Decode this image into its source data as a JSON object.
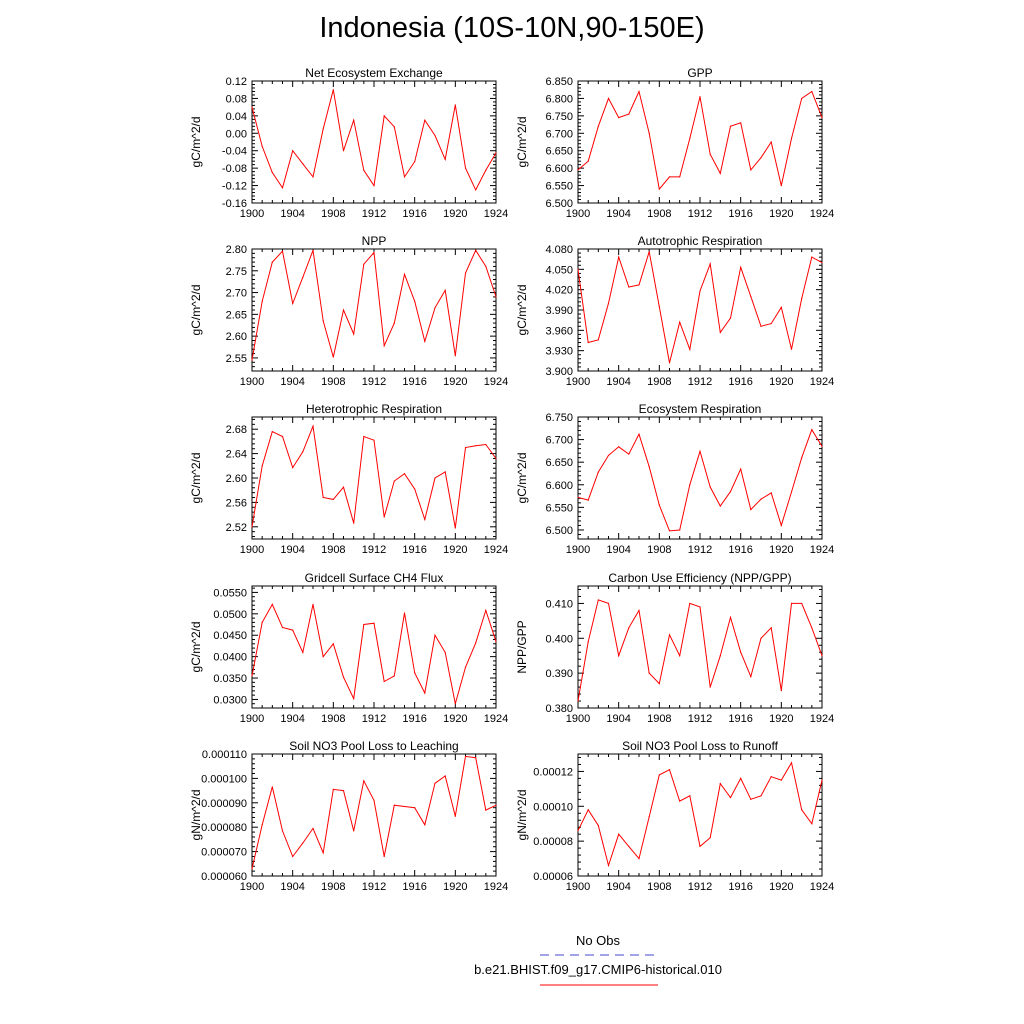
{
  "title": "Indonesia (10S-10N,90-150E)",
  "colors": {
    "line": "#ff0000",
    "obs": "#4444cc",
    "axis": "#000000"
  },
  "legend": {
    "obs_label": "No Obs",
    "model_label": "b.e21.BHIST.f09_g17.CMIP6-historical.010"
  },
  "chart_data": [
    {
      "type": "line",
      "title": "Net Ecosystem Exchange",
      "ylabel": "gC/m^2/d",
      "xlim": [
        1900,
        1924
      ],
      "ylim": [
        -0.16,
        0.12
      ],
      "yticks": [
        -0.16,
        -0.12,
        -0.08,
        -0.04,
        0.0,
        0.04,
        0.08,
        0.12
      ],
      "ytick_labels": [
        "-0.16",
        "-0.12",
        "-0.08",
        "-0.04",
        "0.00",
        "0.04",
        "0.08",
        "0.12"
      ],
      "xticks": [
        1900,
        1904,
        1908,
        1912,
        1916,
        1920,
        1924
      ],
      "xtick_labels": [
        "1900",
        "1904",
        "1908",
        "1912",
        "1916",
        "1920",
        "1924"
      ],
      "x": [
        1900,
        1901,
        1902,
        1903,
        1904,
        1905,
        1906,
        1907,
        1908,
        1909,
        1910,
        1911,
        1912,
        1913,
        1914,
        1915,
        1916,
        1917,
        1918,
        1919,
        1920,
        1921,
        1922,
        1923,
        1924
      ],
      "y": [
        0.06,
        -0.03,
        -0.09,
        -0.125,
        -0.04,
        -0.07,
        -0.1,
        0.01,
        0.1,
        -0.04,
        0.03,
        -0.085,
        -0.12,
        0.04,
        0.015,
        -0.1,
        -0.065,
        0.03,
        -0.005,
        -0.06,
        0.065,
        -0.08,
        -0.13,
        -0.085,
        -0.045
      ]
    },
    {
      "type": "line",
      "title": "GPP",
      "ylabel": "gC/m^2/d",
      "xlim": [
        1900,
        1924
      ],
      "ylim": [
        6.5,
        6.85
      ],
      "yticks": [
        6.5,
        6.55,
        6.6,
        6.65,
        6.7,
        6.75,
        6.8,
        6.85
      ],
      "ytick_labels": [
        "6.500",
        "6.550",
        "6.600",
        "6.650",
        "6.700",
        "6.750",
        "6.800",
        "6.850"
      ],
      "xticks": [
        1900,
        1904,
        1908,
        1912,
        1916,
        1920,
        1924
      ],
      "xtick_labels": [
        "1900",
        "1904",
        "1908",
        "1912",
        "1916",
        "1920",
        "1924"
      ],
      "x": [
        1900,
        1901,
        1902,
        1903,
        1904,
        1905,
        1906,
        1907,
        1908,
        1909,
        1910,
        1911,
        1912,
        1913,
        1914,
        1915,
        1916,
        1917,
        1918,
        1919,
        1920,
        1921,
        1922,
        1923,
        1924
      ],
      "y": [
        6.595,
        6.62,
        6.72,
        6.8,
        6.745,
        6.755,
        6.82,
        6.7,
        6.54,
        6.575,
        6.575,
        6.685,
        6.805,
        6.64,
        6.585,
        6.72,
        6.73,
        6.595,
        6.63,
        6.675,
        6.55,
        6.685,
        6.8,
        6.82,
        6.745
      ]
    },
    {
      "type": "line",
      "title": "NPP",
      "ylabel": "gC/m^2/d",
      "xlim": [
        1900,
        1924
      ],
      "ylim": [
        2.52,
        2.8
      ],
      "yticks": [
        2.55,
        2.6,
        2.65,
        2.7,
        2.75,
        2.8
      ],
      "ytick_labels": [
        "2.55",
        "2.60",
        "2.65",
        "2.70",
        "2.75",
        "2.80"
      ],
      "xticks": [
        1900,
        1904,
        1908,
        1912,
        1916,
        1920,
        1924
      ],
      "xtick_labels": [
        "1900",
        "1904",
        "1908",
        "1912",
        "1916",
        "1920",
        "1924"
      ],
      "x": [
        1900,
        1901,
        1902,
        1903,
        1904,
        1905,
        1906,
        1907,
        1908,
        1909,
        1910,
        1911,
        1912,
        1913,
        1914,
        1915,
        1916,
        1917,
        1918,
        1919,
        1920,
        1921,
        1922,
        1923,
        1924
      ],
      "y": [
        2.545,
        2.68,
        2.77,
        2.795,
        2.675,
        2.735,
        2.797,
        2.635,
        2.552,
        2.66,
        2.605,
        2.765,
        2.792,
        2.578,
        2.63,
        2.742,
        2.68,
        2.588,
        2.665,
        2.705,
        2.555,
        2.745,
        2.797,
        2.76,
        2.69
      ]
    },
    {
      "type": "line",
      "title": "Autotrophic Respiration",
      "ylabel": "gC/m^2/d",
      "xlim": [
        1900,
        1924
      ],
      "ylim": [
        3.9,
        4.08
      ],
      "yticks": [
        3.9,
        3.93,
        3.96,
        3.99,
        4.02,
        4.05,
        4.08
      ],
      "ytick_labels": [
        "3.900",
        "3.930",
        "3.960",
        "3.990",
        "4.020",
        "4.050",
        "4.080"
      ],
      "xticks": [
        1900,
        1904,
        1908,
        1912,
        1916,
        1920,
        1924
      ],
      "xtick_labels": [
        "1900",
        "1904",
        "1908",
        "1912",
        "1916",
        "1920",
        "1924"
      ],
      "x": [
        1900,
        1901,
        1902,
        1903,
        1904,
        1905,
        1906,
        1907,
        1908,
        1909,
        1910,
        1911,
        1912,
        1913,
        1914,
        1915,
        1916,
        1917,
        1918,
        1919,
        1920,
        1921,
        1922,
        1923,
        1924
      ],
      "y": [
        4.05,
        3.942,
        3.946,
        4.0,
        4.068,
        4.024,
        4.027,
        4.076,
        3.995,
        3.912,
        3.972,
        3.932,
        4.018,
        4.058,
        3.957,
        3.978,
        4.053,
        4.01,
        3.966,
        3.97,
        3.994,
        3.932,
        4.007,
        4.068,
        4.06
      ]
    },
    {
      "type": "line",
      "title": "Heterotrophic Respiration",
      "ylabel": "gC/m^2/d",
      "xlim": [
        1900,
        1924
      ],
      "ylim": [
        2.5,
        2.7
      ],
      "yticks": [
        2.52,
        2.56,
        2.6,
        2.64,
        2.68
      ],
      "ytick_labels": [
        "2.52",
        "2.56",
        "2.60",
        "2.64",
        "2.68"
      ],
      "xticks": [
        1900,
        1904,
        1908,
        1912,
        1916,
        1920,
        1924
      ],
      "xtick_labels": [
        "1900",
        "1904",
        "1908",
        "1912",
        "1916",
        "1920",
        "1924"
      ],
      "x": [
        1900,
        1901,
        1902,
        1903,
        1904,
        1905,
        1906,
        1907,
        1908,
        1909,
        1910,
        1911,
        1912,
        1913,
        1914,
        1915,
        1916,
        1917,
        1918,
        1919,
        1920,
        1921,
        1922,
        1923,
        1924
      ],
      "y": [
        2.52,
        2.62,
        2.676,
        2.668,
        2.617,
        2.643,
        2.685,
        2.568,
        2.565,
        2.585,
        2.526,
        2.668,
        2.662,
        2.536,
        2.595,
        2.607,
        2.582,
        2.532,
        2.6,
        2.61,
        2.518,
        2.65,
        2.653,
        2.655,
        2.632
      ]
    },
    {
      "type": "line",
      "title": "Ecosystem Respiration",
      "ylabel": "gC/m^2/d",
      "xlim": [
        1900,
        1924
      ],
      "ylim": [
        6.48,
        6.75
      ],
      "yticks": [
        6.5,
        6.55,
        6.6,
        6.65,
        6.7,
        6.75
      ],
      "ytick_labels": [
        "6.500",
        "6.550",
        "6.600",
        "6.650",
        "6.700",
        "6.750"
      ],
      "xticks": [
        1900,
        1904,
        1908,
        1912,
        1916,
        1920,
        1924
      ],
      "xtick_labels": [
        "1900",
        "1904",
        "1908",
        "1912",
        "1916",
        "1920",
        "1924"
      ],
      "x": [
        1900,
        1901,
        1902,
        1903,
        1904,
        1905,
        1906,
        1907,
        1908,
        1909,
        1910,
        1911,
        1912,
        1913,
        1914,
        1915,
        1916,
        1917,
        1918,
        1919,
        1920,
        1921,
        1922,
        1923,
        1924
      ],
      "y": [
        6.572,
        6.566,
        6.628,
        6.665,
        6.684,
        6.668,
        6.712,
        6.64,
        6.555,
        6.498,
        6.5,
        6.6,
        6.674,
        6.595,
        6.553,
        6.585,
        6.635,
        6.545,
        6.568,
        6.582,
        6.51,
        6.584,
        6.66,
        6.722,
        6.685
      ]
    },
    {
      "type": "line",
      "title": "Gridcell Surface CH4 Flux",
      "ylabel": "gC/m^2/d",
      "xlim": [
        1900,
        1924
      ],
      "ylim": [
        0.028,
        0.0565
      ],
      "yticks": [
        0.03,
        0.035,
        0.04,
        0.045,
        0.05,
        0.055
      ],
      "ytick_labels": [
        "0.0300",
        "0.0350",
        "0.0400",
        "0.0450",
        "0.0500",
        "0.0550"
      ],
      "xticks": [
        1900,
        1904,
        1908,
        1912,
        1916,
        1920,
        1924
      ],
      "xtick_labels": [
        "1900",
        "1904",
        "1908",
        "1912",
        "1916",
        "1920",
        "1924"
      ],
      "x": [
        1900,
        1901,
        1902,
        1903,
        1904,
        1905,
        1906,
        1907,
        1908,
        1909,
        1910,
        1911,
        1912,
        1913,
        1914,
        1915,
        1916,
        1917,
        1918,
        1919,
        1920,
        1921,
        1922,
        1923,
        1924
      ],
      "y": [
        0.0355,
        0.048,
        0.0522,
        0.0468,
        0.0462,
        0.041,
        0.0522,
        0.04,
        0.043,
        0.0352,
        0.0302,
        0.0475,
        0.0478,
        0.0342,
        0.0355,
        0.0502,
        0.0362,
        0.0315,
        0.045,
        0.041,
        0.029,
        0.0375,
        0.0432,
        0.0508,
        0.0435
      ]
    },
    {
      "type": "line",
      "title": "Carbon Use Efficiency (NPP/GPP)",
      "ylabel": "NPP/GPP",
      "xlim": [
        1900,
        1924
      ],
      "ylim": [
        0.38,
        0.415
      ],
      "yticks": [
        0.38,
        0.39,
        0.4,
        0.41
      ],
      "ytick_labels": [
        "0.380",
        "0.390",
        "0.400",
        "0.410"
      ],
      "xticks": [
        1900,
        1904,
        1908,
        1912,
        1916,
        1920,
        1924
      ],
      "xtick_labels": [
        "1900",
        "1904",
        "1908",
        "1912",
        "1916",
        "1920",
        "1924"
      ],
      "x": [
        1900,
        1901,
        1902,
        1903,
        1904,
        1905,
        1906,
        1907,
        1908,
        1909,
        1910,
        1911,
        1912,
        1913,
        1914,
        1915,
        1916,
        1917,
        1918,
        1919,
        1920,
        1921,
        1922,
        1923,
        1924
      ],
      "y": [
        0.382,
        0.399,
        0.411,
        0.41,
        0.395,
        0.403,
        0.408,
        0.39,
        0.387,
        0.401,
        0.395,
        0.41,
        0.409,
        0.386,
        0.395,
        0.406,
        0.396,
        0.389,
        0.4,
        0.403,
        0.385,
        0.41,
        0.41,
        0.403,
        0.395
      ]
    },
    {
      "type": "line",
      "title": "Soil NO3 Pool Loss to Leaching",
      "ylabel": "gN/m^2/d",
      "xlim": [
        1900,
        1924
      ],
      "ylim": [
        6e-05,
        0.00011
      ],
      "yticks": [
        6e-05,
        7e-05,
        8e-05,
        9e-05,
        0.0001,
        0.00011
      ],
      "ytick_labels": [
        "0.000060",
        "0.000070",
        "0.000080",
        "0.000090",
        "0.000100",
        "0.000110"
      ],
      "xticks": [
        1900,
        1904,
        1908,
        1912,
        1916,
        1920,
        1924
      ],
      "xtick_labels": [
        "1900",
        "1904",
        "1908",
        "1912",
        "1916",
        "1920",
        "1924"
      ],
      "x": [
        1900,
        1901,
        1902,
        1903,
        1904,
        1905,
        1906,
        1907,
        1908,
        1909,
        1910,
        1911,
        1912,
        1913,
        1914,
        1915,
        1916,
        1917,
        1918,
        1919,
        1920,
        1921,
        1922,
        1923,
        1924
      ],
      "y": [
        6.3e-05,
        8.1e-05,
        9.65e-05,
        7.85e-05,
        6.8e-05,
        7.35e-05,
        7.95e-05,
        6.95e-05,
        9.55e-05,
        9.5e-05,
        7.85e-05,
        9.9e-05,
        9.1e-05,
        6.8e-05,
        8.9e-05,
        8.85e-05,
        8.8e-05,
        8.1e-05,
        9.8e-05,
        0.000101,
        8.45e-05,
        0.000109,
        0.0001085,
        8.7e-05,
        8.9e-05
      ]
    },
    {
      "type": "line",
      "title": "Soil NO3 Pool Loss to Runoff",
      "ylabel": "gN/m^2/d",
      "xlim": [
        1900,
        1924
      ],
      "ylim": [
        6e-05,
        0.00013
      ],
      "yticks": [
        6e-05,
        8e-05,
        0.0001,
        0.00012
      ],
      "ytick_labels": [
        "0.00006",
        "0.00008",
        "0.00010",
        "0.00012"
      ],
      "xticks": [
        1900,
        1904,
        1908,
        1912,
        1916,
        1920,
        1924
      ],
      "xtick_labels": [
        "1900",
        "1904",
        "1908",
        "1912",
        "1916",
        "1920",
        "1924"
      ],
      "x": [
        1900,
        1901,
        1902,
        1903,
        1904,
        1905,
        1906,
        1907,
        1908,
        1909,
        1910,
        1911,
        1912,
        1913,
        1914,
        1915,
        1916,
        1917,
        1918,
        1919,
        1920,
        1921,
        1922,
        1923,
        1924
      ],
      "y": [
        8.6e-05,
        9.8e-05,
        8.9e-05,
        6.6e-05,
        8.4e-05,
        7.7e-05,
        7e-05,
        9.4e-05,
        0.000118,
        0.000121,
        0.000103,
        0.000106,
        7.7e-05,
        8.2e-05,
        0.000113,
        0.000105,
        0.000116,
        0.000104,
        0.000106,
        0.000117,
        0.000115,
        0.000125,
        9.8e-05,
        9e-05,
        0.000115
      ]
    }
  ]
}
